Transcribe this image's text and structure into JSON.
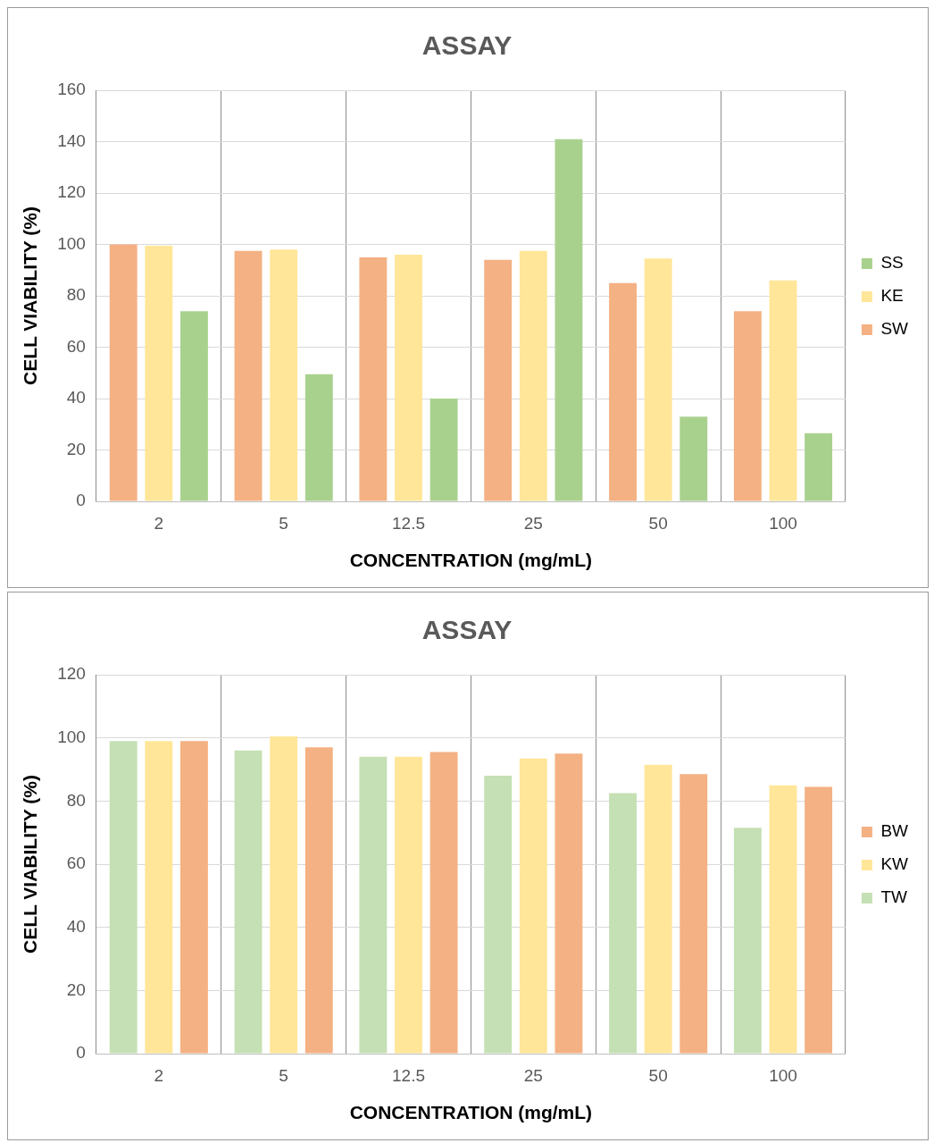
{
  "chart_data": [
    {
      "type": "bar",
      "title": "ASSAY",
      "xlabel": "CONCENTRATION (mg/mL)",
      "ylabel": "CELL VIABILITY (%)",
      "categories": [
        "2",
        "5",
        "12.5",
        "25",
        "50",
        "100"
      ],
      "series": [
        {
          "name": "SW",
          "color": "#f4b183",
          "values": [
            100,
            97.5,
            95,
            94,
            85,
            74
          ]
        },
        {
          "name": "KE",
          "color": "#ffe699",
          "values": [
            99.5,
            98,
            96,
            97.5,
            94.5,
            86
          ]
        },
        {
          "name": "SS",
          "color": "#a9d18e",
          "values": [
            74,
            49.5,
            40,
            141,
            33,
            26.5
          ]
        }
      ],
      "ylim": [
        0,
        160
      ],
      "yticks": [
        0,
        20,
        40,
        60,
        80,
        100,
        120,
        140,
        160
      ],
      "grid": true,
      "legend": "right"
    },
    {
      "type": "bar",
      "title": "ASSAY",
      "xlabel": "CONCENTRATION (mg/mL)",
      "ylabel": "CELL VIABILITY (%)",
      "categories": [
        "2",
        "5",
        "12.5",
        "25",
        "50",
        "100"
      ],
      "series": [
        {
          "name": "TW",
          "color": "#c5e0b4",
          "values": [
            99,
            96,
            94,
            88,
            82.5,
            71.5
          ]
        },
        {
          "name": "KW",
          "color": "#ffe699",
          "values": [
            99,
            100.5,
            94,
            93.5,
            91.5,
            85
          ]
        },
        {
          "name": "BW",
          "color": "#f4b183",
          "values": [
            99,
            97,
            95.5,
            95,
            88.5,
            84.5
          ]
        }
      ],
      "ylim": [
        0,
        120
      ],
      "yticks": [
        0,
        20,
        40,
        60,
        80,
        100,
        120
      ],
      "grid": true,
      "legend": "right"
    }
  ]
}
